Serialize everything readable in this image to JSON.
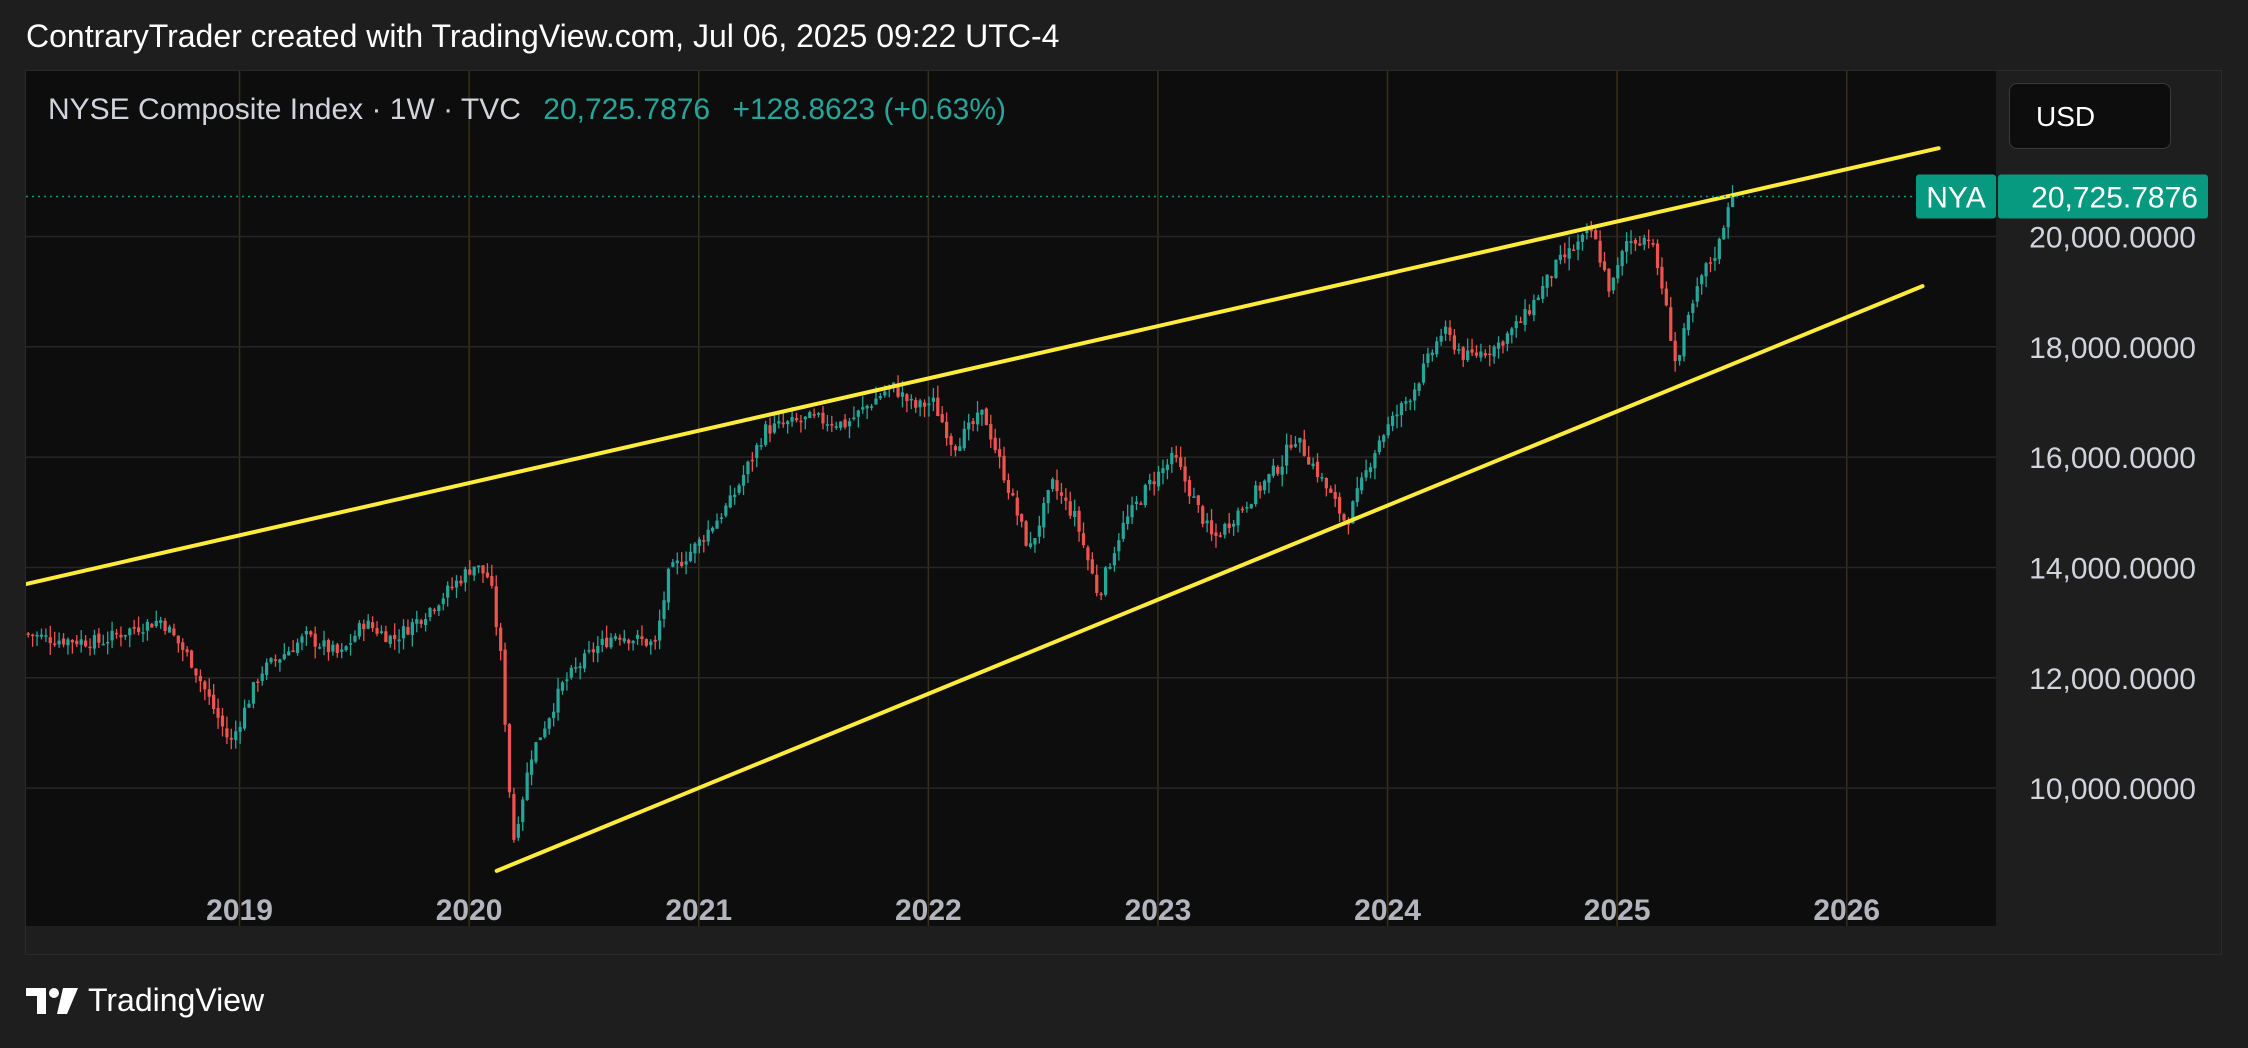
{
  "header": {
    "attribution": "ContraryTrader created with TradingView.com, Jul 06, 2025 09:22 UTC-4"
  },
  "legend": {
    "symbol_line": "NYSE Composite Index · 1W · TVC",
    "last": "20,725.7876",
    "change": "+128.8623 (+0.63%)"
  },
  "currency_button": {
    "label": "USD"
  },
  "price_tag": {
    "ticker": "NYA",
    "value": "20,725.7876"
  },
  "footer": {
    "brand": "TradingView"
  },
  "colors": {
    "up": "#26a69a",
    "down": "#ef5350",
    "trendline": "#ffeb3b",
    "background": "#0d0d0d",
    "accent": "#089981"
  },
  "chart_data": {
    "type": "candlestick",
    "symbol": "NYA",
    "interval": "1W",
    "x_ticks": [
      "2019",
      "2020",
      "2021",
      "2022",
      "2023",
      "2024",
      "2025",
      "2026"
    ],
    "y_ticks": [
      "10,000.0000",
      "12,000.0000",
      "14,000.0000",
      "16,000.0000",
      "18,000.0000",
      "20,000.0000"
    ],
    "x_range": [
      2018.07,
      2026.65
    ],
    "y_range": [
      7500,
      23000
    ],
    "last_price": 20725.7876,
    "price_path": [
      [
        2018.07,
        12800
      ],
      [
        2018.2,
        12700
      ],
      [
        2018.4,
        12650
      ],
      [
        2018.55,
        12900
      ],
      [
        2018.67,
        13050
      ],
      [
        2018.8,
        12300
      ],
      [
        2018.97,
        10800
      ],
      [
        2019.1,
        12100
      ],
      [
        2019.3,
        12750
      ],
      [
        2019.45,
        12400
      ],
      [
        2019.55,
        13000
      ],
      [
        2019.68,
        12700
      ],
      [
        2019.8,
        13100
      ],
      [
        2019.9,
        13500
      ],
      [
        2020.03,
        14050
      ],
      [
        2020.1,
        13800
      ],
      [
        2020.15,
        12300
      ],
      [
        2020.2,
        9000
      ],
      [
        2020.28,
        10600
      ],
      [
        2020.42,
        11900
      ],
      [
        2020.55,
        12500
      ],
      [
        2020.65,
        12800
      ],
      [
        2020.82,
        12600
      ],
      [
        2020.88,
        13900
      ],
      [
        2021.0,
        14400
      ],
      [
        2021.15,
        15200
      ],
      [
        2021.3,
        16500
      ],
      [
        2021.5,
        16700
      ],
      [
        2021.65,
        16600
      ],
      [
        2021.85,
        17300
      ],
      [
        2021.95,
        16900
      ],
      [
        2022.03,
        17000
      ],
      [
        2022.12,
        16200
      ],
      [
        2022.25,
        16800
      ],
      [
        2022.37,
        15300
      ],
      [
        2022.45,
        14300
      ],
      [
        2022.55,
        15500
      ],
      [
        2022.65,
        14900
      ],
      [
        2022.75,
        13500
      ],
      [
        2022.85,
        14700
      ],
      [
        2022.97,
        15500
      ],
      [
        2023.08,
        16000
      ],
      [
        2023.18,
        15100
      ],
      [
        2023.25,
        14500
      ],
      [
        2023.4,
        15200
      ],
      [
        2023.55,
        15900
      ],
      [
        2023.6,
        16400
      ],
      [
        2023.68,
        15900
      ],
      [
        2023.83,
        14800
      ],
      [
        2023.97,
        16300
      ],
      [
        2024.12,
        17200
      ],
      [
        2024.25,
        18300
      ],
      [
        2024.35,
        17800
      ],
      [
        2024.48,
        18000
      ],
      [
        2024.6,
        18500
      ],
      [
        2024.75,
        19500
      ],
      [
        2024.9,
        20100
      ],
      [
        2024.98,
        19000
      ],
      [
        2025.05,
        19900
      ],
      [
        2025.15,
        20000
      ],
      [
        2025.2,
        19200
      ],
      [
        2025.27,
        17600
      ],
      [
        2025.3,
        18200
      ],
      [
        2025.38,
        19300
      ],
      [
        2025.45,
        19800
      ],
      [
        2025.5,
        20725.7876
      ]
    ],
    "trendlines": [
      {
        "name": "upper",
        "from": [
          2018.07,
          13700
        ],
        "to": [
          2026.4,
          21600
        ]
      },
      {
        "name": "lower",
        "from": [
          2020.12,
          8500
        ],
        "to": [
          2026.33,
          19100
        ]
      }
    ],
    "grid": true,
    "price_axis": "right",
    "time_axis": "bottom"
  }
}
